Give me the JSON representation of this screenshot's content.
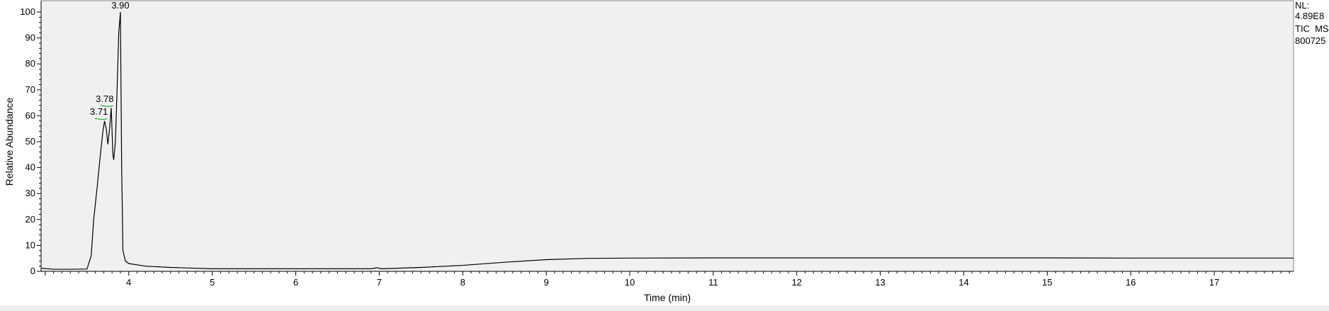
{
  "chart_data": {
    "type": "line",
    "title": "",
    "xlabel": "Time (min)",
    "ylabel": "Relative Abundance",
    "xlim": [
      2.95,
      17.95
    ],
    "ylim": [
      0,
      100
    ],
    "x_ticks": [
      4,
      5,
      6,
      7,
      8,
      9,
      10,
      11,
      12,
      13,
      14,
      15,
      16,
      17
    ],
    "y_ticks": [
      0,
      10,
      20,
      30,
      40,
      50,
      60,
      70,
      80,
      90,
      100
    ],
    "grid": false,
    "colors": {
      "plot_bg": "#f0f0f0",
      "line": "#000000",
      "peak_marker": "#33aa33"
    },
    "info": {
      "nl_label": "NL:",
      "nl_value": "4.89E8",
      "scan_label": "TIC  MS",
      "sample_id": "800725"
    },
    "peak_labels": [
      {
        "text": "3.71",
        "x": 3.71,
        "y": 59
      },
      {
        "text": "3.78",
        "x": 3.78,
        "y": 64
      },
      {
        "text": "3.90",
        "x": 3.9,
        "y": 100
      }
    ],
    "series": [
      {
        "points": [
          [
            2.95,
            1.2
          ],
          [
            3.1,
            0.8
          ],
          [
            3.3,
            0.8
          ],
          [
            3.5,
            0.9
          ],
          [
            3.55,
            6
          ],
          [
            3.58,
            20
          ],
          [
            3.62,
            32
          ],
          [
            3.66,
            45
          ],
          [
            3.69,
            54
          ],
          [
            3.71,
            58
          ],
          [
            3.73,
            55
          ],
          [
            3.75,
            49
          ],
          [
            3.77,
            55
          ],
          [
            3.79,
            63
          ],
          [
            3.81,
            45
          ],
          [
            3.82,
            43
          ],
          [
            3.84,
            50
          ],
          [
            3.86,
            70
          ],
          [
            3.88,
            92
          ],
          [
            3.9,
            100
          ],
          [
            3.915,
            40
          ],
          [
            3.93,
            8
          ],
          [
            3.96,
            4
          ],
          [
            4.0,
            3
          ],
          [
            4.2,
            2
          ],
          [
            4.5,
            1.5
          ],
          [
            5.0,
            1.0
          ],
          [
            6.0,
            1.0
          ],
          [
            6.9,
            1.0
          ],
          [
            6.97,
            1.4
          ],
          [
            7.03,
            1.0
          ],
          [
            7.5,
            1.5
          ],
          [
            8.0,
            2.3
          ],
          [
            8.5,
            3.5
          ],
          [
            9.0,
            4.5
          ],
          [
            9.5,
            5.0
          ],
          [
            10.0,
            5.1
          ],
          [
            11.0,
            5.2
          ],
          [
            12.0,
            5.2
          ],
          [
            13.0,
            5.2
          ],
          [
            14.0,
            5.2
          ],
          [
            15.0,
            5.2
          ],
          [
            16.0,
            5.1
          ],
          [
            17.0,
            5.1
          ],
          [
            17.95,
            5.1
          ]
        ]
      }
    ]
  }
}
